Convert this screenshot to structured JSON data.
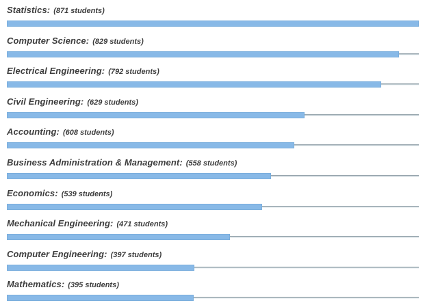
{
  "chart_data": {
    "type": "bar",
    "orientation": "horizontal",
    "title": "",
    "xlabel": "",
    "ylabel": "",
    "categories": [
      "Statistics",
      "Computer Science",
      "Electrical Engineering",
      "Civil Engineering",
      "Accounting",
      "Business Administration & Management",
      "Economics",
      "Mechanical Engineering",
      "Computer Engineering",
      "Mathematics"
    ],
    "values": [
      871,
      829,
      792,
      629,
      608,
      558,
      539,
      471,
      397,
      395
    ],
    "value_unit": "students",
    "xlim": [
      0,
      871
    ],
    "grid": false,
    "legend": false
  },
  "rows": [
    {
      "label": "Statistics:",
      "count": "(871 students)",
      "value": 871
    },
    {
      "label": "Computer Science:",
      "count": "(829 students)",
      "value": 829
    },
    {
      "label": "Electrical Engineering:",
      "count": "(792 students)",
      "value": 792
    },
    {
      "label": "Civil Engineering:",
      "count": "(629 students)",
      "value": 629
    },
    {
      "label": "Accounting:",
      "count": "(608 students)",
      "value": 608
    },
    {
      "label": "Business Administration & Management:",
      "count": "(558 students)",
      "value": 558
    },
    {
      "label": "Economics:",
      "count": "(539 students)",
      "value": 539
    },
    {
      "label": "Mechanical Engineering:",
      "count": "(471 students)",
      "value": 471
    },
    {
      "label": "Computer Engineering:",
      "count": "(397 students)",
      "value": 397
    },
    {
      "label": "Mathematics:",
      "count": "(395 students)",
      "value": 395
    }
  ],
  "colors": {
    "bar_fill": "#88b9e7",
    "bar_edge": "#7aaedd",
    "track_dark": "#97a5ad",
    "track_mid": "#bcc8ce",
    "track_light": "#f0f4f6",
    "text": "#3d3d3d",
    "background": "#ffffff"
  }
}
